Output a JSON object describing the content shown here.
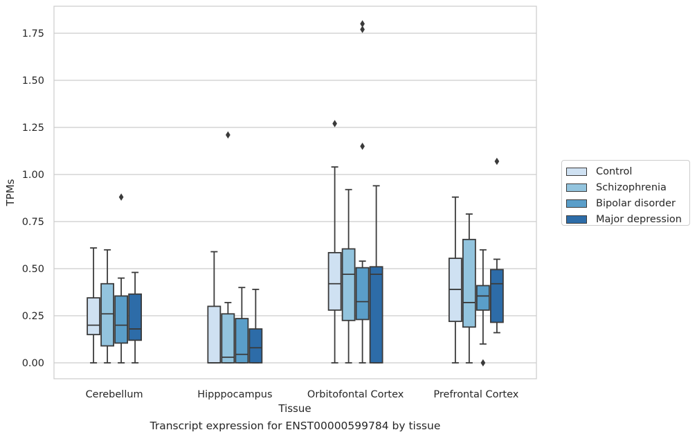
{
  "chart_data": {
    "type": "box",
    "xlabel": "Tissue",
    "ylabel": "TPMs",
    "ylim": [
      -0.09,
      1.89
    ],
    "yticks": [
      0.0,
      0.25,
      0.5,
      0.75,
      1.0,
      1.25,
      1.5,
      1.75
    ],
    "ytick_labels": [
      "0.00",
      "0.25",
      "0.50",
      "0.75",
      "1.00",
      "1.25",
      "1.50",
      "1.75"
    ],
    "grid": "horizontal",
    "legend_position": "right",
    "categories": [
      "Cerebellum",
      "Hipppocampus",
      "Orbitofontal Cortex",
      "Prefrontal Cortex"
    ],
    "series": [
      {
        "name": "Control",
        "color": "#cfe1f2",
        "boxes": [
          {
            "whislo": 0.0,
            "q1": 0.15,
            "med": 0.2,
            "q3": 0.345,
            "whishi": 0.61,
            "fliers": []
          },
          {
            "whislo": 0.0,
            "q1": 0.0,
            "med": 0.0,
            "q3": 0.3,
            "whishi": 0.59,
            "fliers": []
          },
          {
            "whislo": 0.0,
            "q1": 0.28,
            "med": 0.42,
            "q3": 0.585,
            "whishi": 1.04,
            "fliers": [
              1.27
            ]
          },
          {
            "whislo": 0.0,
            "q1": 0.22,
            "med": 0.39,
            "q3": 0.555,
            "whishi": 0.88,
            "fliers": []
          }
        ]
      },
      {
        "name": "Schizophrenia",
        "color": "#93c4de",
        "boxes": [
          {
            "whislo": 0.0,
            "q1": 0.09,
            "med": 0.26,
            "q3": 0.42,
            "whishi": 0.6,
            "fliers": []
          },
          {
            "whislo": 0.0,
            "q1": 0.0,
            "med": 0.03,
            "q3": 0.26,
            "whishi": 0.32,
            "fliers": [
              1.21
            ]
          },
          {
            "whislo": 0.0,
            "q1": 0.225,
            "med": 0.47,
            "q3": 0.605,
            "whishi": 0.92,
            "fliers": []
          },
          {
            "whislo": 0.0,
            "q1": 0.19,
            "med": 0.32,
            "q3": 0.655,
            "whishi": 0.79,
            "fliers": []
          }
        ]
      },
      {
        "name": "Bipolar disorder",
        "color": "#5a9ec9",
        "boxes": [
          {
            "whislo": 0.0,
            "q1": 0.105,
            "med": 0.2,
            "q3": 0.355,
            "whishi": 0.45,
            "fliers": [
              0.88
            ]
          },
          {
            "whislo": 0.0,
            "q1": 0.0,
            "med": 0.045,
            "q3": 0.235,
            "whishi": 0.4,
            "fliers": []
          },
          {
            "whislo": 0.0,
            "q1": 0.23,
            "med": 0.325,
            "q3": 0.505,
            "whishi": 0.54,
            "fliers": [
              1.15,
              1.77,
              1.8
            ]
          },
          {
            "whislo": 0.1,
            "q1": 0.28,
            "med": 0.355,
            "q3": 0.41,
            "whishi": 0.6,
            "fliers": [
              0.0
            ]
          }
        ]
      },
      {
        "name": "Major depression",
        "color": "#2d6ca8",
        "boxes": [
          {
            "whislo": 0.0,
            "q1": 0.12,
            "med": 0.18,
            "q3": 0.365,
            "whishi": 0.48,
            "fliers": []
          },
          {
            "whislo": 0.0,
            "q1": 0.0,
            "med": 0.08,
            "q3": 0.18,
            "whishi": 0.39,
            "fliers": []
          },
          {
            "whislo": 0.0,
            "q1": 0.0,
            "med": 0.47,
            "q3": 0.51,
            "whishi": 0.94,
            "fliers": []
          },
          {
            "whislo": 0.16,
            "q1": 0.215,
            "med": 0.42,
            "q3": 0.495,
            "whishi": 0.55,
            "fliers": [
              1.07
            ]
          }
        ]
      }
    ]
  },
  "caption": "Transcript expression for ENST00000599784 by tissue"
}
